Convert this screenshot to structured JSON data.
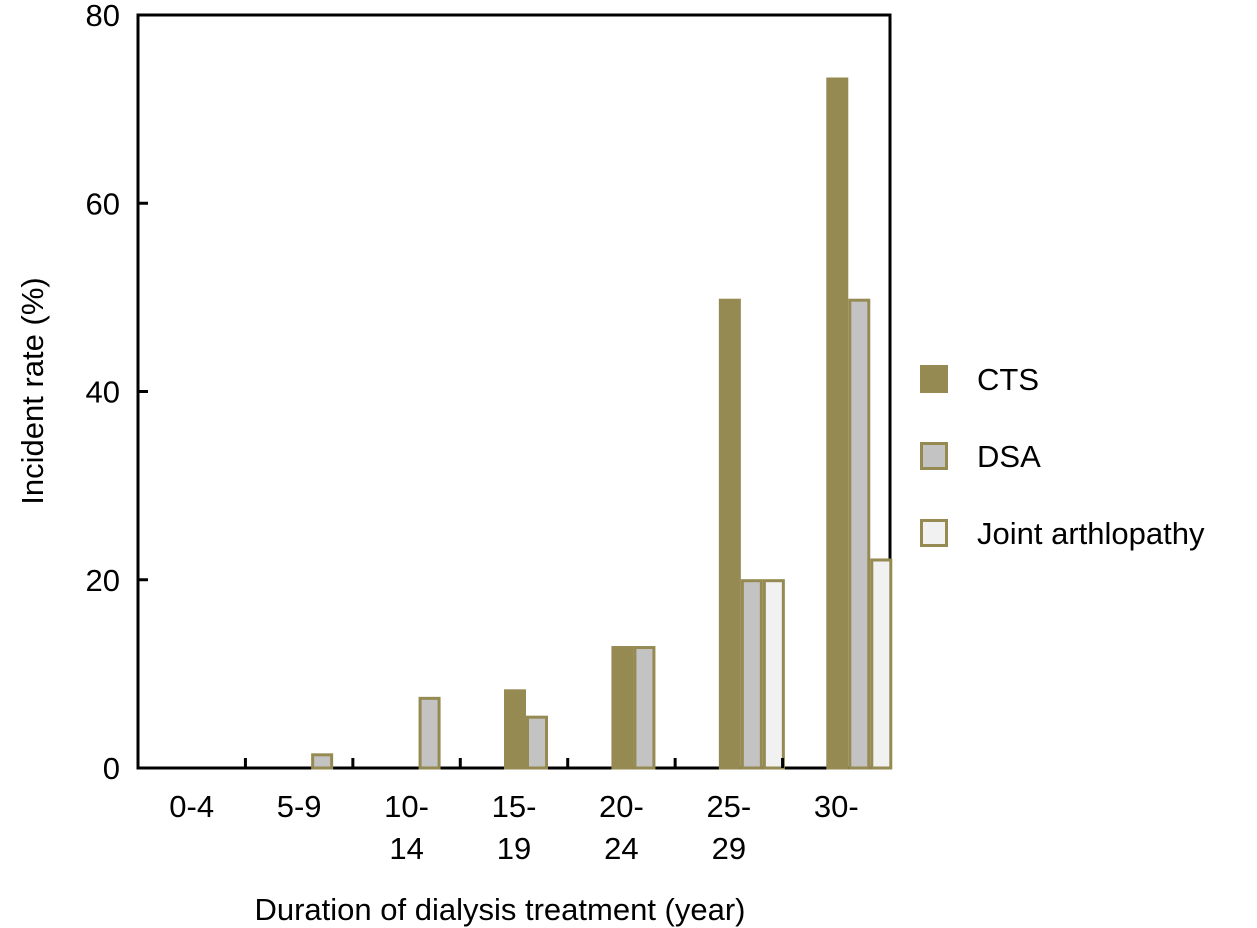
{
  "chart_data": {
    "type": "bar",
    "title": "",
    "xlabel": "Duration of dialysis treatment (year)",
    "ylabel": "Incident rate (%)",
    "ylim": [
      0,
      80
    ],
    "yticks": [
      "0",
      "20",
      "40",
      "60",
      "80"
    ],
    "grid": false,
    "legend_position": "right",
    "categories": [
      [
        "0-4"
      ],
      [
        "5-9"
      ],
      [
        "10-",
        "14"
      ],
      [
        "15-",
        "19"
      ],
      [
        "20-",
        "24"
      ],
      [
        "25-",
        "29"
      ],
      [
        "30-"
      ]
    ],
    "series": [
      {
        "name": "CTS",
        "values": [
          0,
          0,
          0,
          8.2,
          12.8,
          49.7,
          73.2
        ]
      },
      {
        "name": "DSA",
        "values": [
          0,
          1.4,
          7.4,
          5.4,
          12.8,
          19.9,
          49.7
        ]
      },
      {
        "name": "Joint arthlopathy",
        "values": [
          0,
          0,
          0,
          0,
          0,
          19.9,
          22.1
        ]
      }
    ]
  },
  "colors": {
    "cts_fill": "#958a52",
    "dsa_fill": "#c3c3c3",
    "joint_fill": "#f1f1f1",
    "bar_border": "#958a52",
    "axis": "#000000"
  }
}
